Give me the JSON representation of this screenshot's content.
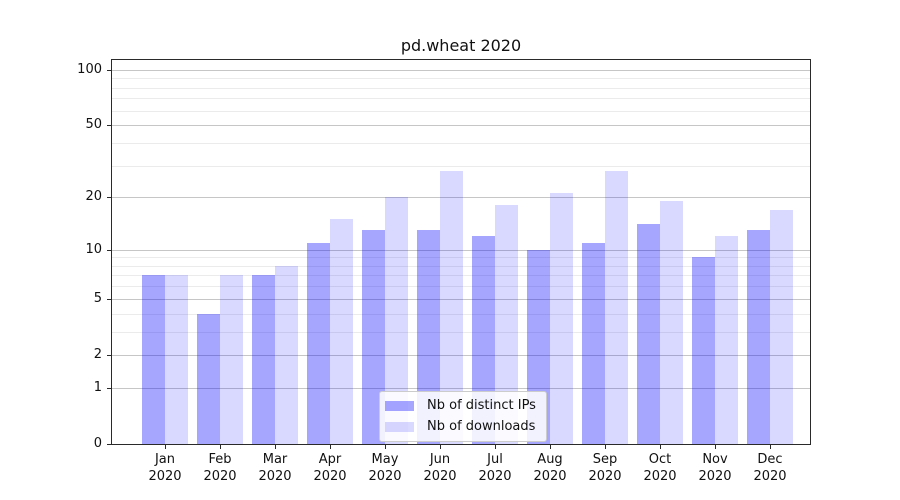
{
  "title": "pd.wheat 2020",
  "chart_data": {
    "type": "bar",
    "title": "pd.wheat 2020",
    "xlabel": "",
    "ylabel": "",
    "categories": [
      "Jan 2020",
      "Feb 2020",
      "Mar 2020",
      "Apr 2020",
      "May 2020",
      "Jun 2020",
      "Jul 2020",
      "Aug 2020",
      "Sep 2020",
      "Oct 2020",
      "Nov 2020",
      "Dec 2020"
    ],
    "series": [
      {
        "name": "Nb of distinct IPs",
        "color": "rgba(0,0,255,0.35)",
        "values": [
          7,
          4,
          7,
          11,
          13,
          13,
          12,
          10,
          11,
          14,
          9,
          13
        ]
      },
      {
        "name": "Nb of downloads",
        "color": "rgba(0,0,255,0.15)",
        "values": [
          7,
          7,
          8,
          15,
          20,
          28,
          18,
          21,
          28,
          19,
          12,
          17
        ]
      }
    ],
    "yscale": "log1p",
    "ylim": [
      0,
      113
    ],
    "y_major_ticks": [
      0,
      1,
      2,
      5,
      10,
      20,
      50,
      100
    ],
    "y_minor_ticks": [
      3,
      4,
      6,
      7,
      8,
      9,
      30,
      40,
      60,
      70,
      80,
      90
    ],
    "grid": "both",
    "legend_position": "lower center"
  },
  "colors": {
    "distinct_ips": "rgba(0,0,255,0.35)",
    "downloads": "rgba(0,0,255,0.15)",
    "major_grid": "#c6c6c6",
    "minor_grid": "#ebebeb",
    "spine": "#2a2a2a"
  }
}
